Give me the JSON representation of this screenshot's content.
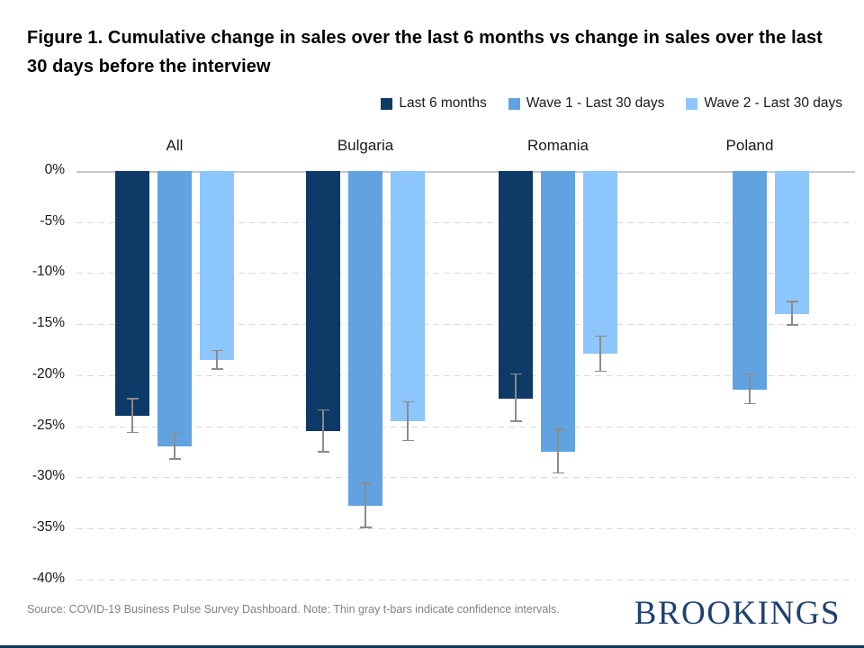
{
  "title": "Figure 1. Cumulative change in sales over the last 6 months vs change in sales over the last 30 days before the interview",
  "legend": [
    {
      "label": "Last 6 months",
      "color": "#0d3a66"
    },
    {
      "label": "Wave 1 - Last 30 days",
      "color": "#61a3e0"
    },
    {
      "label": "Wave 2 - Last 30 days",
      "color": "#8dc6fb"
    }
  ],
  "chart_data": {
    "type": "bar",
    "categories": [
      "All",
      "Bulgaria",
      "Romania",
      "Poland"
    ],
    "series": [
      {
        "name": "Last 6 months",
        "key": "last-6-months",
        "color": "#0d3a66",
        "values": [
          -24.0,
          -25.5,
          -22.3,
          null
        ],
        "ci_low": [
          -22.3,
          -23.4,
          -19.9,
          null
        ],
        "ci_high": [
          -25.6,
          -27.5,
          -24.5,
          null
        ]
      },
      {
        "name": "Wave 1 - Last 30 days",
        "key": "wave-1-last-30-days",
        "color": "#61a3e0",
        "values": [
          -27.0,
          -32.8,
          -27.5,
          -21.4
        ],
        "ci_low": [
          -25.7,
          -30.6,
          -25.3,
          -19.9
        ],
        "ci_high": [
          -28.2,
          -34.9,
          -29.6,
          -22.8
        ]
      },
      {
        "name": "Wave 2 - Last 30 days",
        "key": "wave-2-last-30-days",
        "color": "#8dc6fb",
        "values": [
          -18.5,
          -24.5,
          -17.9,
          -14.0
        ],
        "ci_low": [
          -17.6,
          -22.6,
          -16.2,
          -12.8
        ],
        "ci_high": [
          -19.4,
          -26.4,
          -19.6,
          -15.1
        ]
      }
    ],
    "ylim": [
      0,
      -40
    ],
    "ytick_step": -5,
    "yticks": [
      "0%",
      "-5%",
      "-10%",
      "-15%",
      "-20%",
      "-25%",
      "-30%",
      "-35%",
      "-40%"
    ],
    "grid": "horizontal dashed",
    "legend_position": "top-right",
    "error_bars": "thin gray t-bars (confidence intervals)",
    "colors": {
      "error_bar": "#8c8c8c",
      "gridline": "#d9d9d9",
      "zero_line": "#c7c7c7"
    }
  },
  "footer": {
    "source": "Source: COVID-19 Business Pulse Survey Dashboard. Note: Thin gray t-bars indicate confidence intervals.",
    "brand": "BROOKINGS",
    "brand_color": "#1e4170"
  }
}
